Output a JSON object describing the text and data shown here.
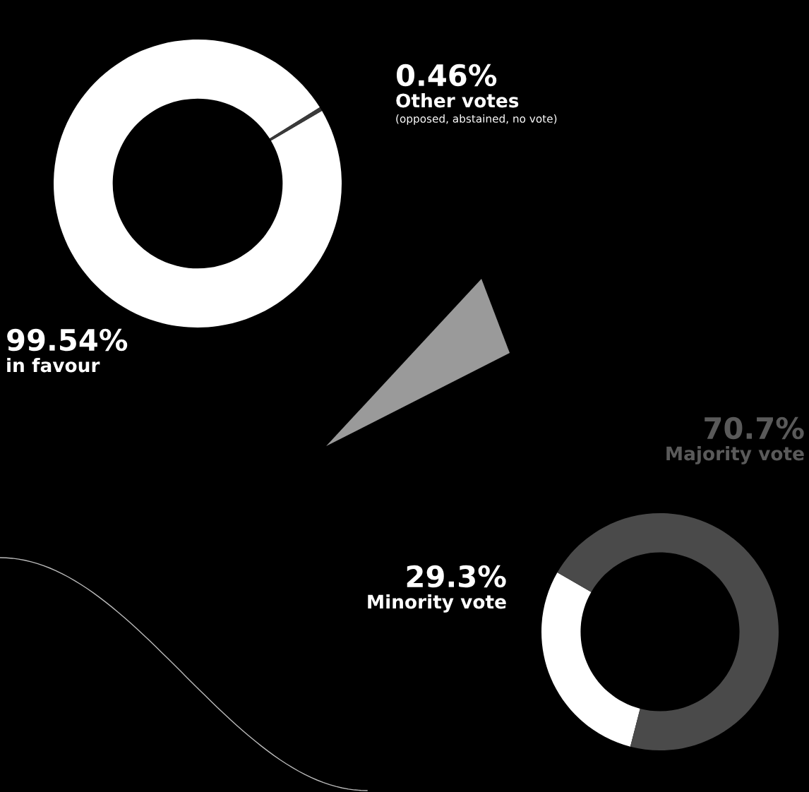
{
  "chart_data": [
    {
      "type": "donut",
      "categories": [
        "in favour",
        "Other votes"
      ],
      "values": [
        99.54,
        0.46
      ],
      "colors": [
        "#ffffff",
        "#3a3a3a"
      ],
      "value_labels": [
        "99.54%",
        "0.46%"
      ],
      "annotations": [
        "(opposed, abstained, no vote)"
      ]
    },
    {
      "type": "donut",
      "categories": [
        "Minority vote",
        "Majority vote"
      ],
      "values": [
        29.3,
        70.7
      ],
      "colors": [
        "#ffffff",
        "#4a4a4a"
      ],
      "value_labels": [
        "29.3%",
        "70.7%"
      ]
    }
  ]
}
